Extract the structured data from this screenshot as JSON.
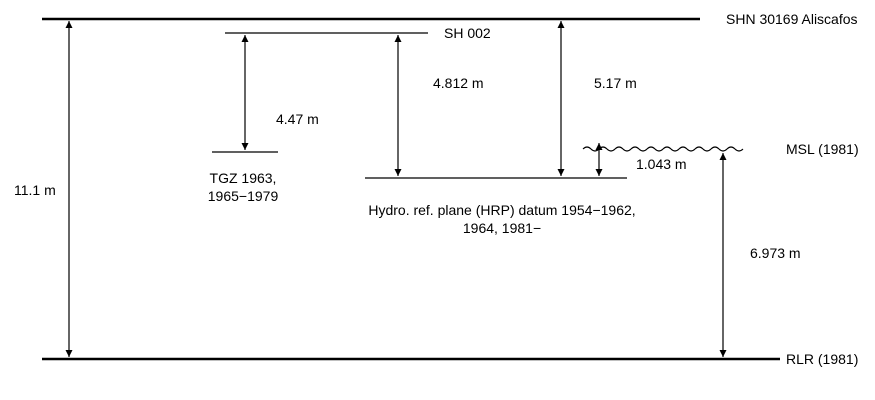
{
  "datums": {
    "top": "SHN 30169 Aliscafos",
    "sh": "SH 002",
    "tgz": [
      "TGZ 1963,",
      "1965−1979"
    ],
    "hrp": [
      "Hydro. ref. plane (HRP) datum 1954−1962,",
      "1964, 1981−"
    ],
    "msl": "MSL (1981)",
    "rlr": "RLR (1981)"
  },
  "measurements": {
    "total": "11.1 m",
    "sh_to_tgz": "4.47 m",
    "sh_to_hrp": "4.812 m",
    "top_to_hrp": "5.17 m",
    "hrp_to_msl": "1.043 m",
    "msl_to_rlr": "6.973 m"
  }
}
